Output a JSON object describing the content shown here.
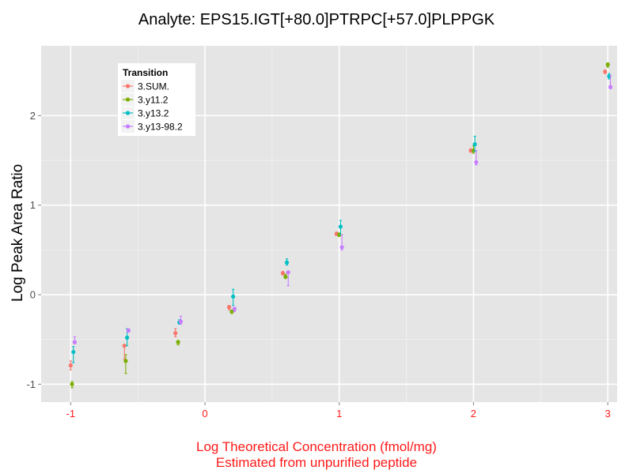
{
  "chart_data": {
    "type": "scatter",
    "title": "Analyte: EPS15.IGT[+80.0]PTRPC[+57.0]PLPPGK",
    "xlabel_line1": "Log Theoretical Concentration (fmol/mg)",
    "xlabel_line2": "Estimated from unpurified peptide",
    "ylabel": "Log Peak Area Ratio",
    "xlim": [
      -1.22,
      3.07
    ],
    "ylim": [
      -1.2,
      2.78
    ],
    "x_ticks": [
      -1,
      0,
      1,
      2,
      3
    ],
    "x_tick_labels": [
      "-1",
      "0",
      "1",
      "2",
      "3"
    ],
    "y_ticks": [
      -1,
      0,
      1,
      2
    ],
    "y_tick_labels": [
      "-1",
      "0",
      "1",
      "2"
    ],
    "grid": true,
    "legend": {
      "title": "Transition",
      "position": "top-left inside"
    },
    "series": [
      {
        "name": "3.SUM.",
        "color": "#f8766d",
        "points": [
          {
            "x": -1.0,
            "y": -0.79,
            "lo": -0.84,
            "hi": -0.74
          },
          {
            "x": -0.6,
            "y": -0.57,
            "lo": -0.72,
            "hi": -0.56
          },
          {
            "x": -0.22,
            "y": -0.43,
            "lo": -0.47,
            "hi": -0.38
          },
          {
            "x": 0.18,
            "y": -0.14,
            "lo": -0.17,
            "hi": -0.12
          },
          {
            "x": 0.58,
            "y": 0.24,
            "lo": 0.22,
            "hi": 0.26
          },
          {
            "x": 0.98,
            "y": 0.68,
            "lo": 0.66,
            "hi": 0.7
          },
          {
            "x": 1.98,
            "y": 1.61,
            "lo": 1.59,
            "hi": 1.63
          },
          {
            "x": 2.98,
            "y": 2.49,
            "lo": 2.47,
            "hi": 2.51
          }
        ]
      },
      {
        "name": "3.y11.2",
        "color": "#7cae00",
        "points": [
          {
            "x": -0.99,
            "y": -1.0,
            "lo": -1.04,
            "hi": -0.97
          },
          {
            "x": -0.59,
            "y": -0.74,
            "lo": -0.88,
            "hi": -0.67
          },
          {
            "x": -0.2,
            "y": -0.53,
            "lo": -0.56,
            "hi": -0.51
          },
          {
            "x": 0.2,
            "y": -0.19,
            "lo": -0.21,
            "hi": -0.17
          },
          {
            "x": 0.6,
            "y": 0.2,
            "lo": 0.18,
            "hi": 0.23
          },
          {
            "x": 1.0,
            "y": 0.67,
            "lo": 0.65,
            "hi": 0.69
          },
          {
            "x": 2.0,
            "y": 1.61,
            "lo": 1.58,
            "hi": 1.66
          },
          {
            "x": 3.0,
            "y": 2.57,
            "lo": 2.54,
            "hi": 2.59
          }
        ]
      },
      {
        "name": "3.y13.2",
        "color": "#00bfc4",
        "points": [
          {
            "x": -0.98,
            "y": -0.64,
            "lo": -0.76,
            "hi": -0.58
          },
          {
            "x": -0.58,
            "y": -0.48,
            "lo": -0.57,
            "hi": -0.38
          },
          {
            "x": -0.19,
            "y": -0.31,
            "lo": -0.33,
            "hi": -0.28
          },
          {
            "x": 0.21,
            "y": -0.02,
            "lo": -0.12,
            "hi": 0.06
          },
          {
            "x": 0.61,
            "y": 0.36,
            "lo": 0.33,
            "hi": 0.4
          },
          {
            "x": 1.01,
            "y": 0.76,
            "lo": 0.67,
            "hi": 0.83
          },
          {
            "x": 2.01,
            "y": 1.68,
            "lo": 1.6,
            "hi": 1.77
          },
          {
            "x": 3.01,
            "y": 2.44,
            "lo": 2.41,
            "hi": 2.47
          }
        ]
      },
      {
        "name": "3.y13-98.2",
        "color": "#c77cff",
        "points": [
          {
            "x": -0.97,
            "y": -0.53,
            "lo": -0.55,
            "hi": -0.47
          },
          {
            "x": -0.57,
            "y": -0.4,
            "lo": -0.42,
            "hi": -0.38
          },
          {
            "x": -0.18,
            "y": -0.3,
            "lo": -0.33,
            "hi": -0.24
          },
          {
            "x": 0.22,
            "y": -0.16,
            "lo": -0.19,
            "hi": -0.14
          },
          {
            "x": 0.62,
            "y": 0.25,
            "lo": 0.1,
            "hi": 0.26
          },
          {
            "x": 1.02,
            "y": 0.53,
            "lo": 0.5,
            "hi": 0.67
          },
          {
            "x": 2.02,
            "y": 1.48,
            "lo": 1.45,
            "hi": 1.61
          },
          {
            "x": 3.02,
            "y": 2.32,
            "lo": 2.3,
            "hi": 2.45
          }
        ]
      }
    ]
  }
}
